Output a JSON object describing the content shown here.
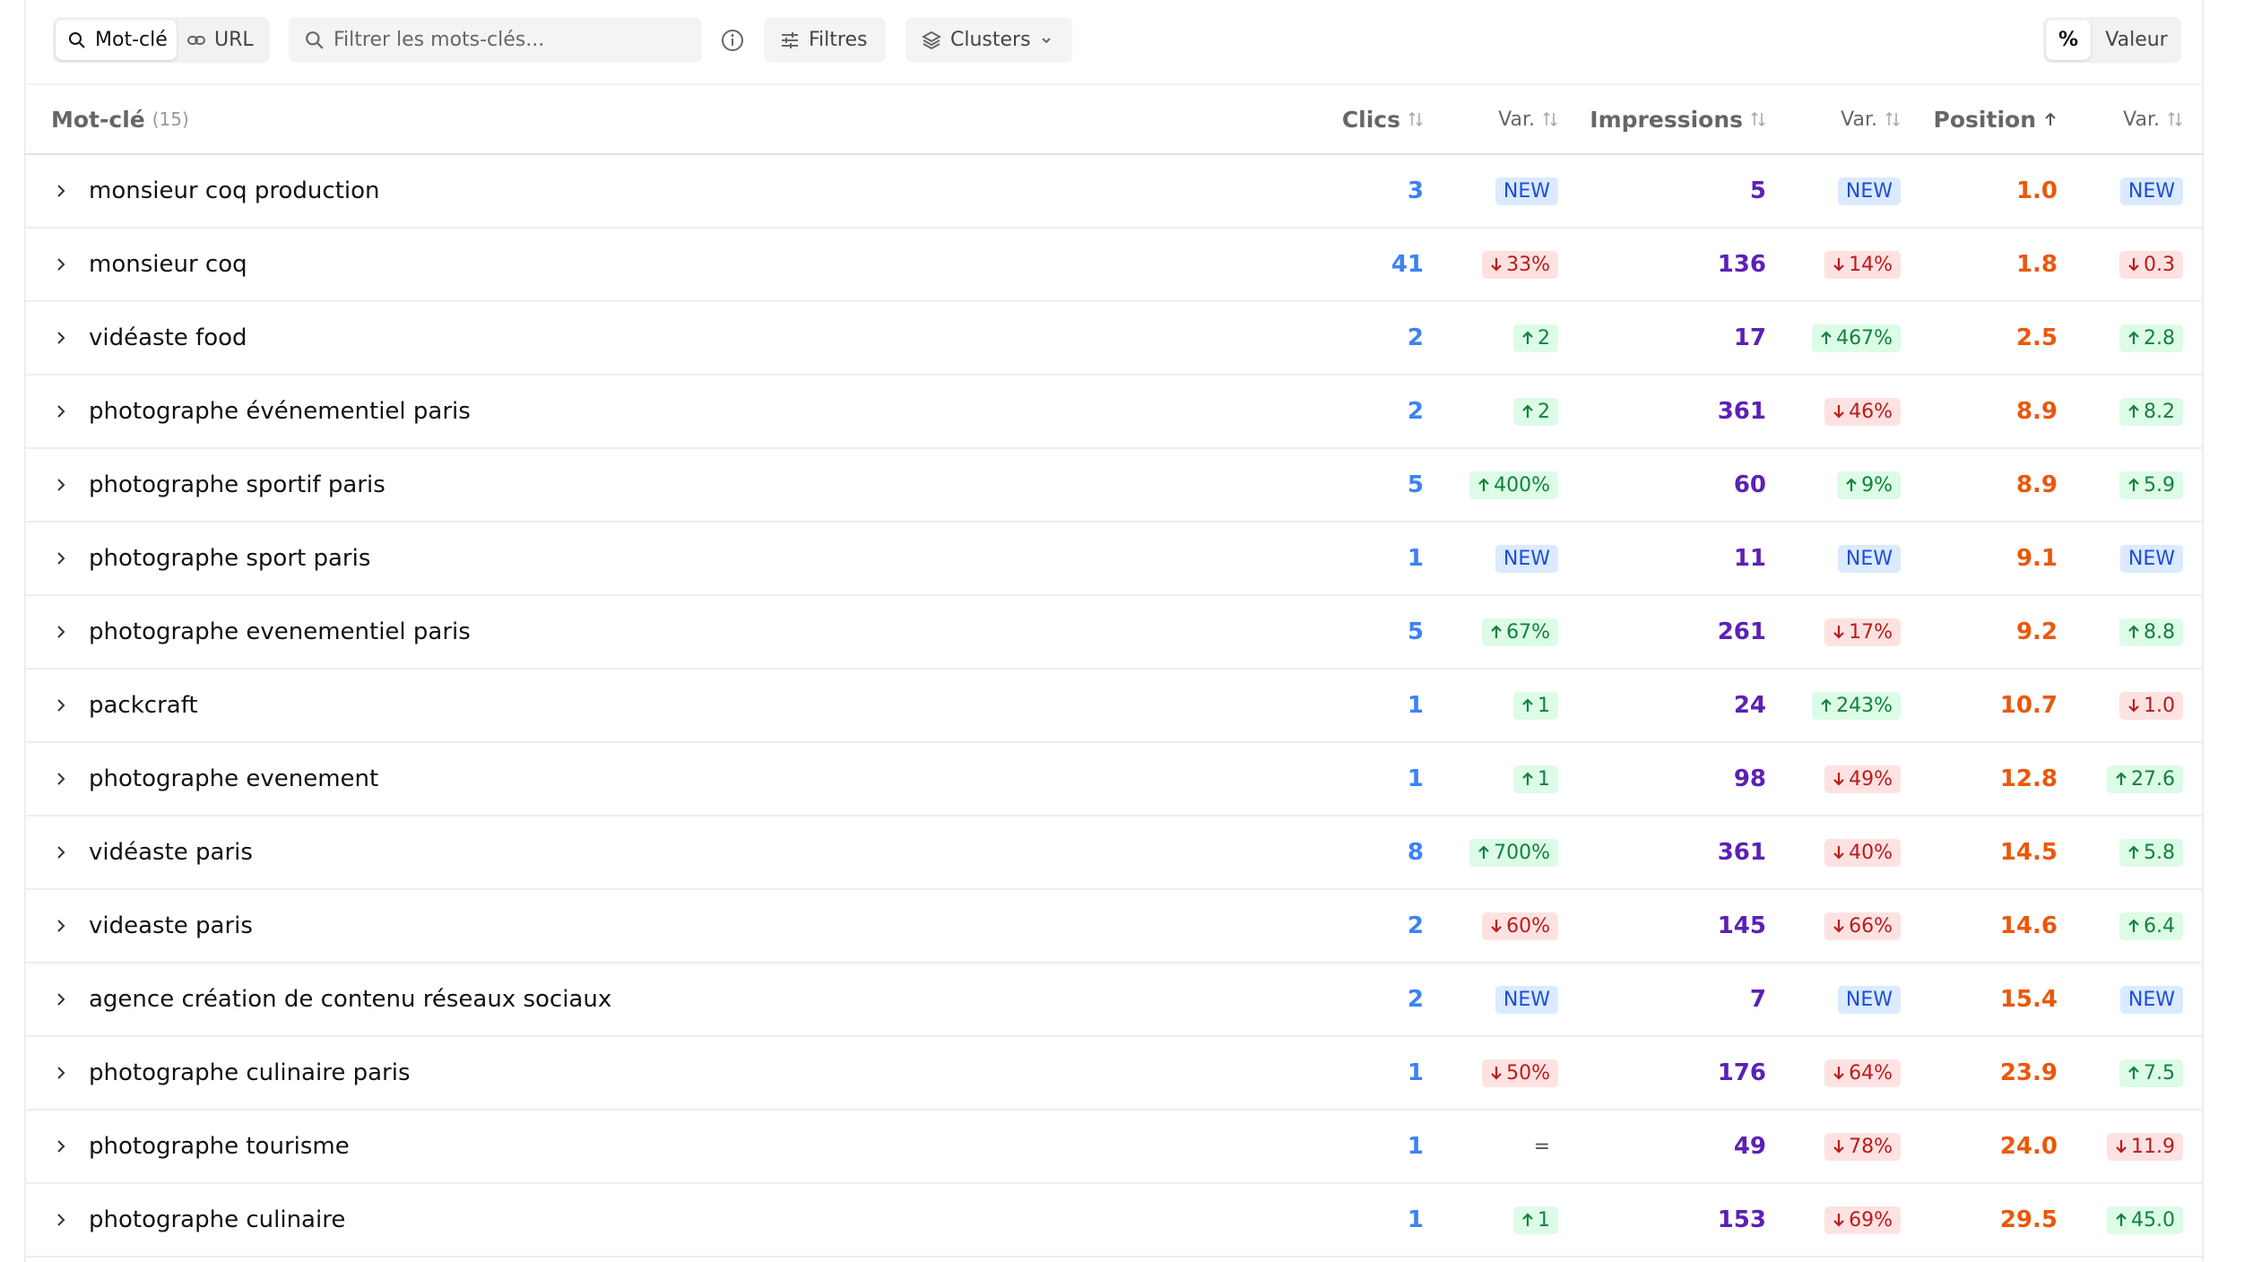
{
  "toolbar": {
    "mode_keyword": "Mot-clé",
    "mode_url": "URL",
    "search_placeholder": "Filtrer les mots-clés...",
    "filters": "Filtres",
    "clusters": "Clusters",
    "percent": "%",
    "value": "Valeur"
  },
  "table": {
    "header": {
      "keyword": "Mot-clé",
      "count": "(15)",
      "clicks": "Clics",
      "clicks_var": "Var.",
      "impressions": "Impressions",
      "impressions_var": "Var.",
      "position": "Position",
      "position_var": "Var."
    },
    "rows": [
      {
        "keyword": "monsieur coq production",
        "clicks": 3,
        "clicks_var": {
          "kind": "new",
          "text": "NEW"
        },
        "impressions": 5,
        "impressions_var": {
          "kind": "new",
          "text": "NEW"
        },
        "position": "1.0",
        "position_var": {
          "kind": "new",
          "text": "NEW"
        }
      },
      {
        "keyword": "monsieur coq",
        "clicks": 41,
        "clicks_var": {
          "kind": "down",
          "text": "33%"
        },
        "impressions": 136,
        "impressions_var": {
          "kind": "down",
          "text": "14%"
        },
        "position": "1.8",
        "position_var": {
          "kind": "down",
          "text": "0.3"
        }
      },
      {
        "keyword": "vidéaste food",
        "clicks": 2,
        "clicks_var": {
          "kind": "up",
          "text": "2"
        },
        "impressions": 17,
        "impressions_var": {
          "kind": "up",
          "text": "467%"
        },
        "position": "2.5",
        "position_var": {
          "kind": "up",
          "text": "2.8"
        }
      },
      {
        "keyword": "photographe événementiel paris",
        "clicks": 2,
        "clicks_var": {
          "kind": "up",
          "text": "2"
        },
        "impressions": 361,
        "impressions_var": {
          "kind": "down",
          "text": "46%"
        },
        "position": "8.9",
        "position_var": {
          "kind": "up",
          "text": "8.2"
        }
      },
      {
        "keyword": "photographe sportif paris",
        "clicks": 5,
        "clicks_var": {
          "kind": "up",
          "text": "400%"
        },
        "impressions": 60,
        "impressions_var": {
          "kind": "up",
          "text": "9%"
        },
        "position": "8.9",
        "position_var": {
          "kind": "up",
          "text": "5.9"
        }
      },
      {
        "keyword": "photographe sport paris",
        "clicks": 1,
        "clicks_var": {
          "kind": "new",
          "text": "NEW"
        },
        "impressions": 11,
        "impressions_var": {
          "kind": "new",
          "text": "NEW"
        },
        "position": "9.1",
        "position_var": {
          "kind": "new",
          "text": "NEW"
        }
      },
      {
        "keyword": "photographe evenementiel paris",
        "clicks": 5,
        "clicks_var": {
          "kind": "up",
          "text": "67%"
        },
        "impressions": 261,
        "impressions_var": {
          "kind": "down",
          "text": "17%"
        },
        "position": "9.2",
        "position_var": {
          "kind": "up",
          "text": "8.8"
        }
      },
      {
        "keyword": "packcraft",
        "clicks": 1,
        "clicks_var": {
          "kind": "up",
          "text": "1"
        },
        "impressions": 24,
        "impressions_var": {
          "kind": "up",
          "text": "243%"
        },
        "position": "10.7",
        "position_var": {
          "kind": "down",
          "text": "1.0"
        }
      },
      {
        "keyword": "photographe evenement",
        "clicks": 1,
        "clicks_var": {
          "kind": "up",
          "text": "1"
        },
        "impressions": 98,
        "impressions_var": {
          "kind": "down",
          "text": "49%"
        },
        "position": "12.8",
        "position_var": {
          "kind": "up",
          "text": "27.6"
        }
      },
      {
        "keyword": "vidéaste paris",
        "clicks": 8,
        "clicks_var": {
          "kind": "up",
          "text": "700%"
        },
        "impressions": 361,
        "impressions_var": {
          "kind": "down",
          "text": "40%"
        },
        "position": "14.5",
        "position_var": {
          "kind": "up",
          "text": "5.8"
        }
      },
      {
        "keyword": "videaste paris",
        "clicks": 2,
        "clicks_var": {
          "kind": "down",
          "text": "60%"
        },
        "impressions": 145,
        "impressions_var": {
          "kind": "down",
          "text": "66%"
        },
        "position": "14.6",
        "position_var": {
          "kind": "up",
          "text": "6.4"
        }
      },
      {
        "keyword": "agence création de contenu réseaux sociaux",
        "clicks": 2,
        "clicks_var": {
          "kind": "new",
          "text": "NEW"
        },
        "impressions": 7,
        "impressions_var": {
          "kind": "new",
          "text": "NEW"
        },
        "position": "15.4",
        "position_var": {
          "kind": "new",
          "text": "NEW"
        }
      },
      {
        "keyword": "photographe culinaire paris",
        "clicks": 1,
        "clicks_var": {
          "kind": "down",
          "text": "50%"
        },
        "impressions": 176,
        "impressions_var": {
          "kind": "down",
          "text": "64%"
        },
        "position": "23.9",
        "position_var": {
          "kind": "up",
          "text": "7.5"
        }
      },
      {
        "keyword": "photographe tourisme",
        "clicks": 1,
        "clicks_var": {
          "kind": "equal",
          "text": "="
        },
        "impressions": 49,
        "impressions_var": {
          "kind": "down",
          "text": "78%"
        },
        "position": "24.0",
        "position_var": {
          "kind": "down",
          "text": "11.9"
        }
      },
      {
        "keyword": "photographe culinaire",
        "clicks": 1,
        "clicks_var": {
          "kind": "up",
          "text": "1"
        },
        "impressions": 153,
        "impressions_var": {
          "kind": "down",
          "text": "69%"
        },
        "position": "29.5",
        "position_var": {
          "kind": "up",
          "text": "45.0"
        }
      }
    ]
  }
}
